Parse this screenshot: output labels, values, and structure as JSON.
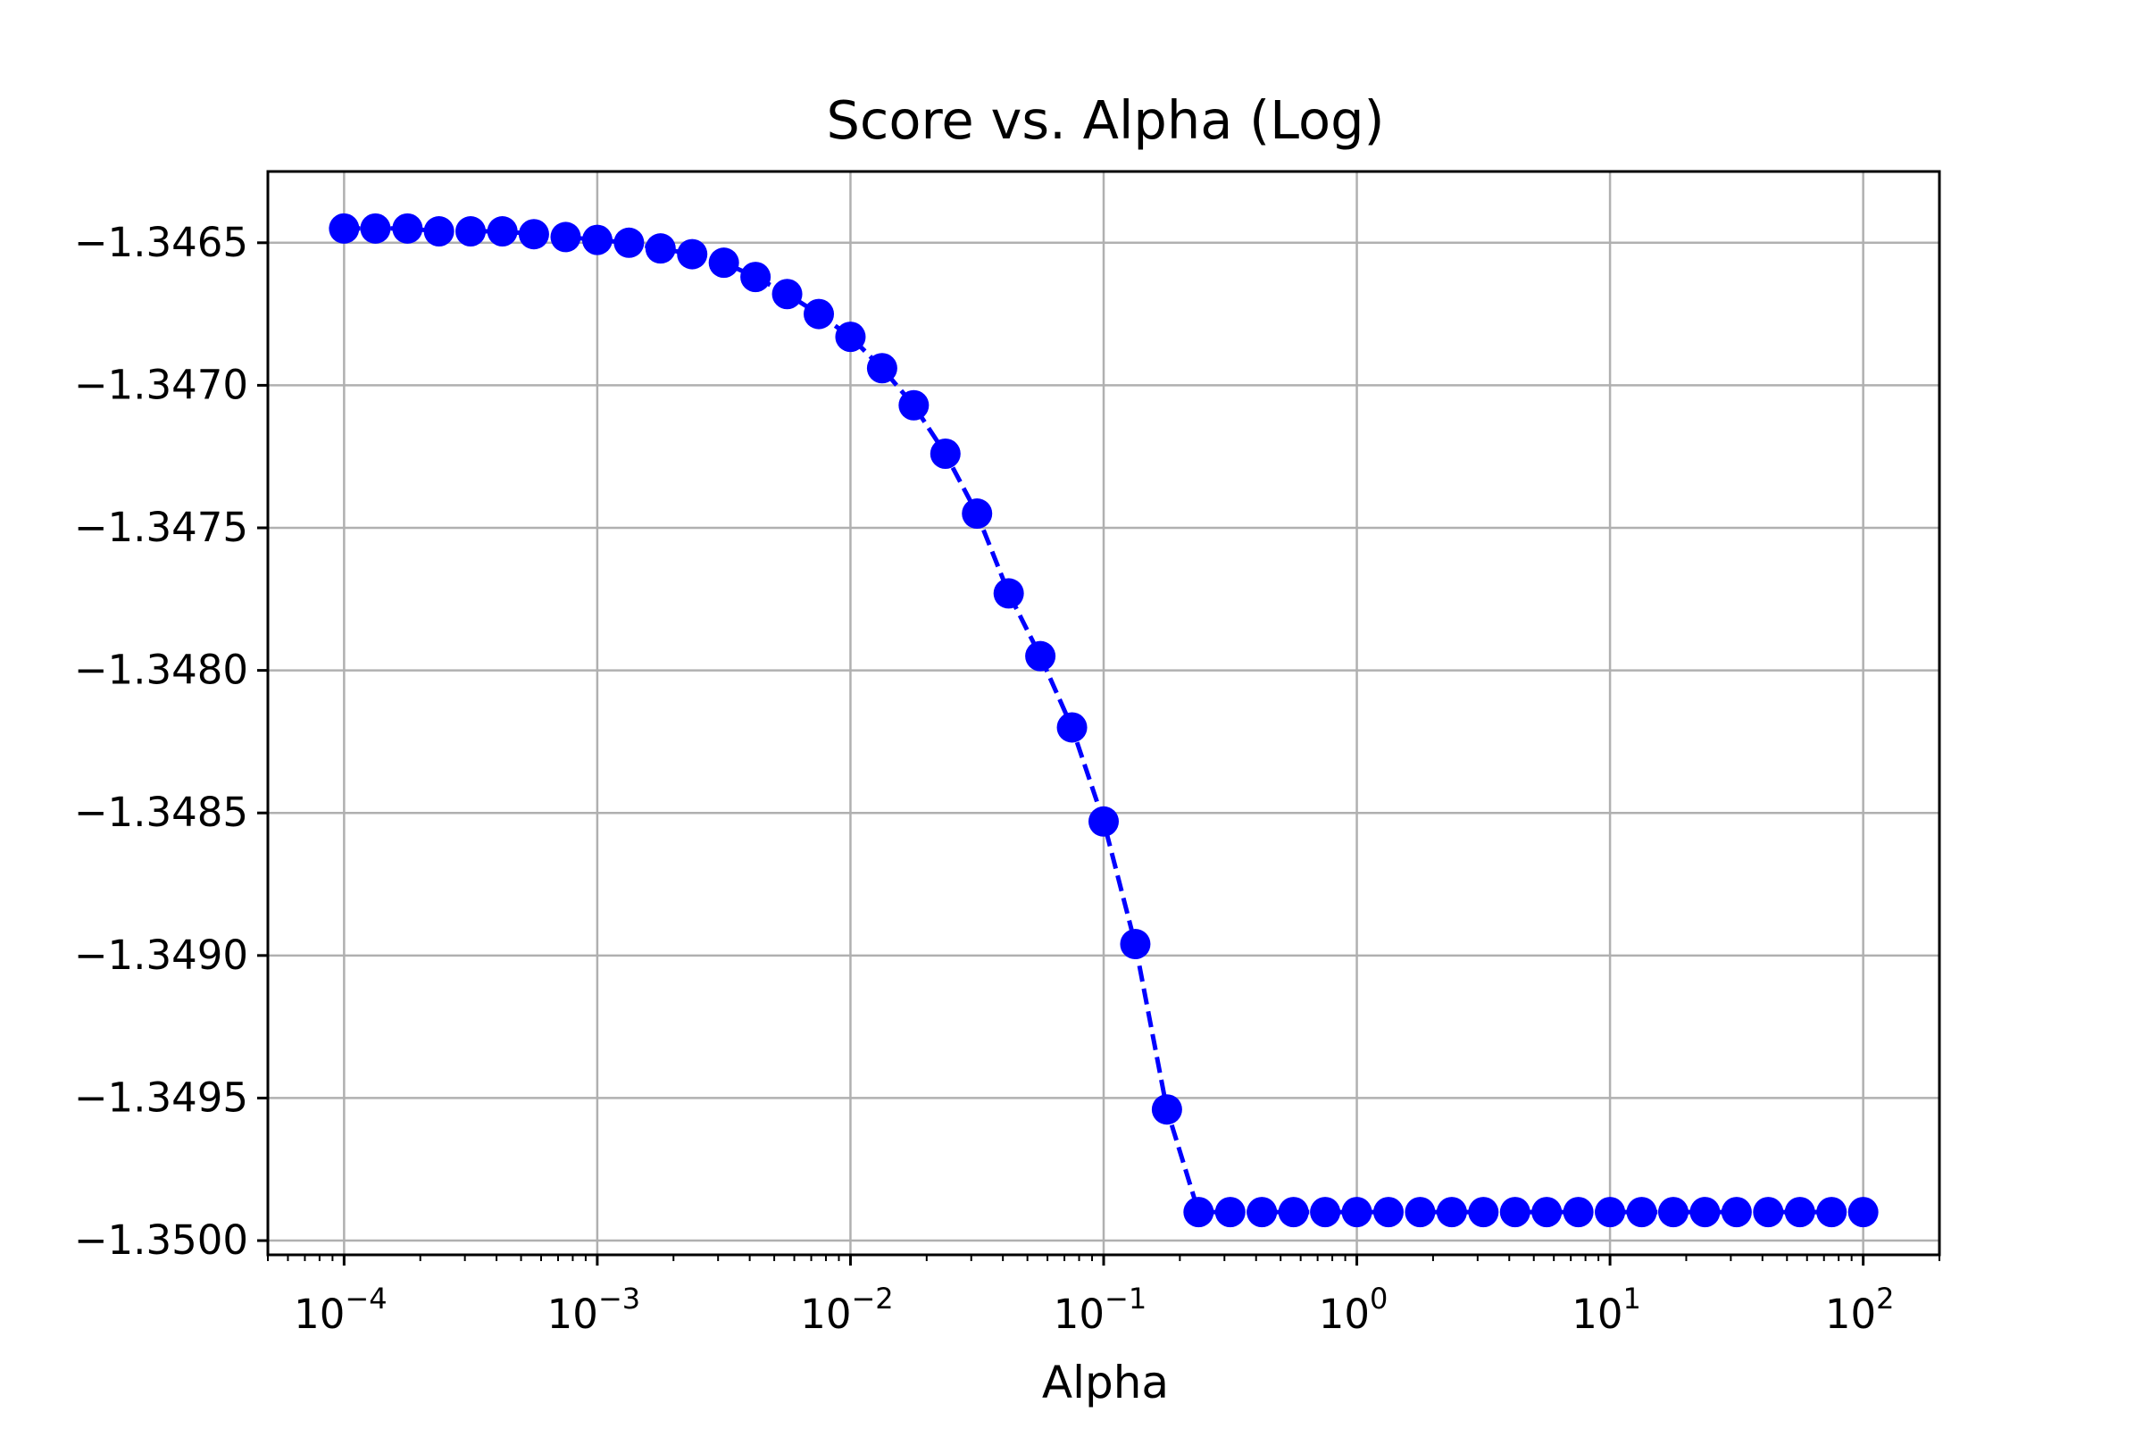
{
  "chart_data": {
    "type": "line",
    "title": "Score vs. Alpha (Log)",
    "xlabel": "Alpha",
    "ylabel": "",
    "x_scale": "log",
    "xlim": [
      5e-05,
      200
    ],
    "ylim": [
      -1.35005,
      -1.34625
    ],
    "grid": true,
    "line_style": "dashed",
    "marker": "circle",
    "color": "#0000ff",
    "x_ticks": [
      {
        "value": 0.0001,
        "base": "10",
        "exp": "−4"
      },
      {
        "value": 0.001,
        "base": "10",
        "exp": "−3"
      },
      {
        "value": 0.01,
        "base": "10",
        "exp": "−2"
      },
      {
        "value": 0.1,
        "base": "10",
        "exp": "−1"
      },
      {
        "value": 1,
        "base": "10",
        "exp": "0"
      },
      {
        "value": 10,
        "base": "10",
        "exp": "1"
      },
      {
        "value": 100,
        "base": "10",
        "exp": "2"
      }
    ],
    "y_ticks": [
      {
        "value": -1.3465,
        "label": "−1.3465"
      },
      {
        "value": -1.347,
        "label": "−1.3470"
      },
      {
        "value": -1.3475,
        "label": "−1.3475"
      },
      {
        "value": -1.348,
        "label": "−1.3480"
      },
      {
        "value": -1.3485,
        "label": "−1.3485"
      },
      {
        "value": -1.349,
        "label": "−1.3490"
      },
      {
        "value": -1.3495,
        "label": "−1.3495"
      },
      {
        "value": -1.35,
        "label": "−1.3500"
      }
    ],
    "series": [
      {
        "x": [
          0.0001,
          0.000133,
          0.000178,
          0.000237,
          0.000316,
          0.000422,
          0.000562,
          0.00075,
          0.001,
          0.001334,
          0.001778,
          0.002371,
          0.003162,
          0.004217,
          0.005623,
          0.007499,
          0.01,
          0.013335,
          0.017783,
          0.023714,
          0.031623,
          0.04217,
          0.056234,
          0.074989,
          0.1,
          0.133352,
          0.177828,
          0.237137,
          0.316228,
          0.421697,
          0.562341,
          0.749894,
          1,
          1.333521,
          1.778279,
          2.371374,
          3.162278,
          4.216965,
          5.623413,
          7.498942,
          10,
          13.335214,
          17.782794,
          23.713737,
          31.622777,
          42.16965,
          56.234133,
          74.989421,
          100
        ],
        "y": [
          -1.34645,
          -1.34645,
          -1.34645,
          -1.34646,
          -1.34646,
          -1.34646,
          -1.34647,
          -1.34648,
          -1.34649,
          -1.3465,
          -1.34652,
          -1.34654,
          -1.34657,
          -1.34662,
          -1.34668,
          -1.34675,
          -1.34683,
          -1.34694,
          -1.34707,
          -1.34724,
          -1.34745,
          -1.34773,
          -1.34795,
          -1.3482,
          -1.34853,
          -1.34896,
          -1.34954,
          -1.3499,
          -1.3499,
          -1.3499,
          -1.3499,
          -1.3499,
          -1.3499,
          -1.3499,
          -1.3499,
          -1.3499,
          -1.3499,
          -1.3499,
          -1.3499,
          -1.3499,
          -1.3499,
          -1.3499,
          -1.3499,
          -1.3499,
          -1.3499,
          -1.3499,
          -1.3499,
          -1.3499,
          -1.3499
        ]
      }
    ]
  }
}
